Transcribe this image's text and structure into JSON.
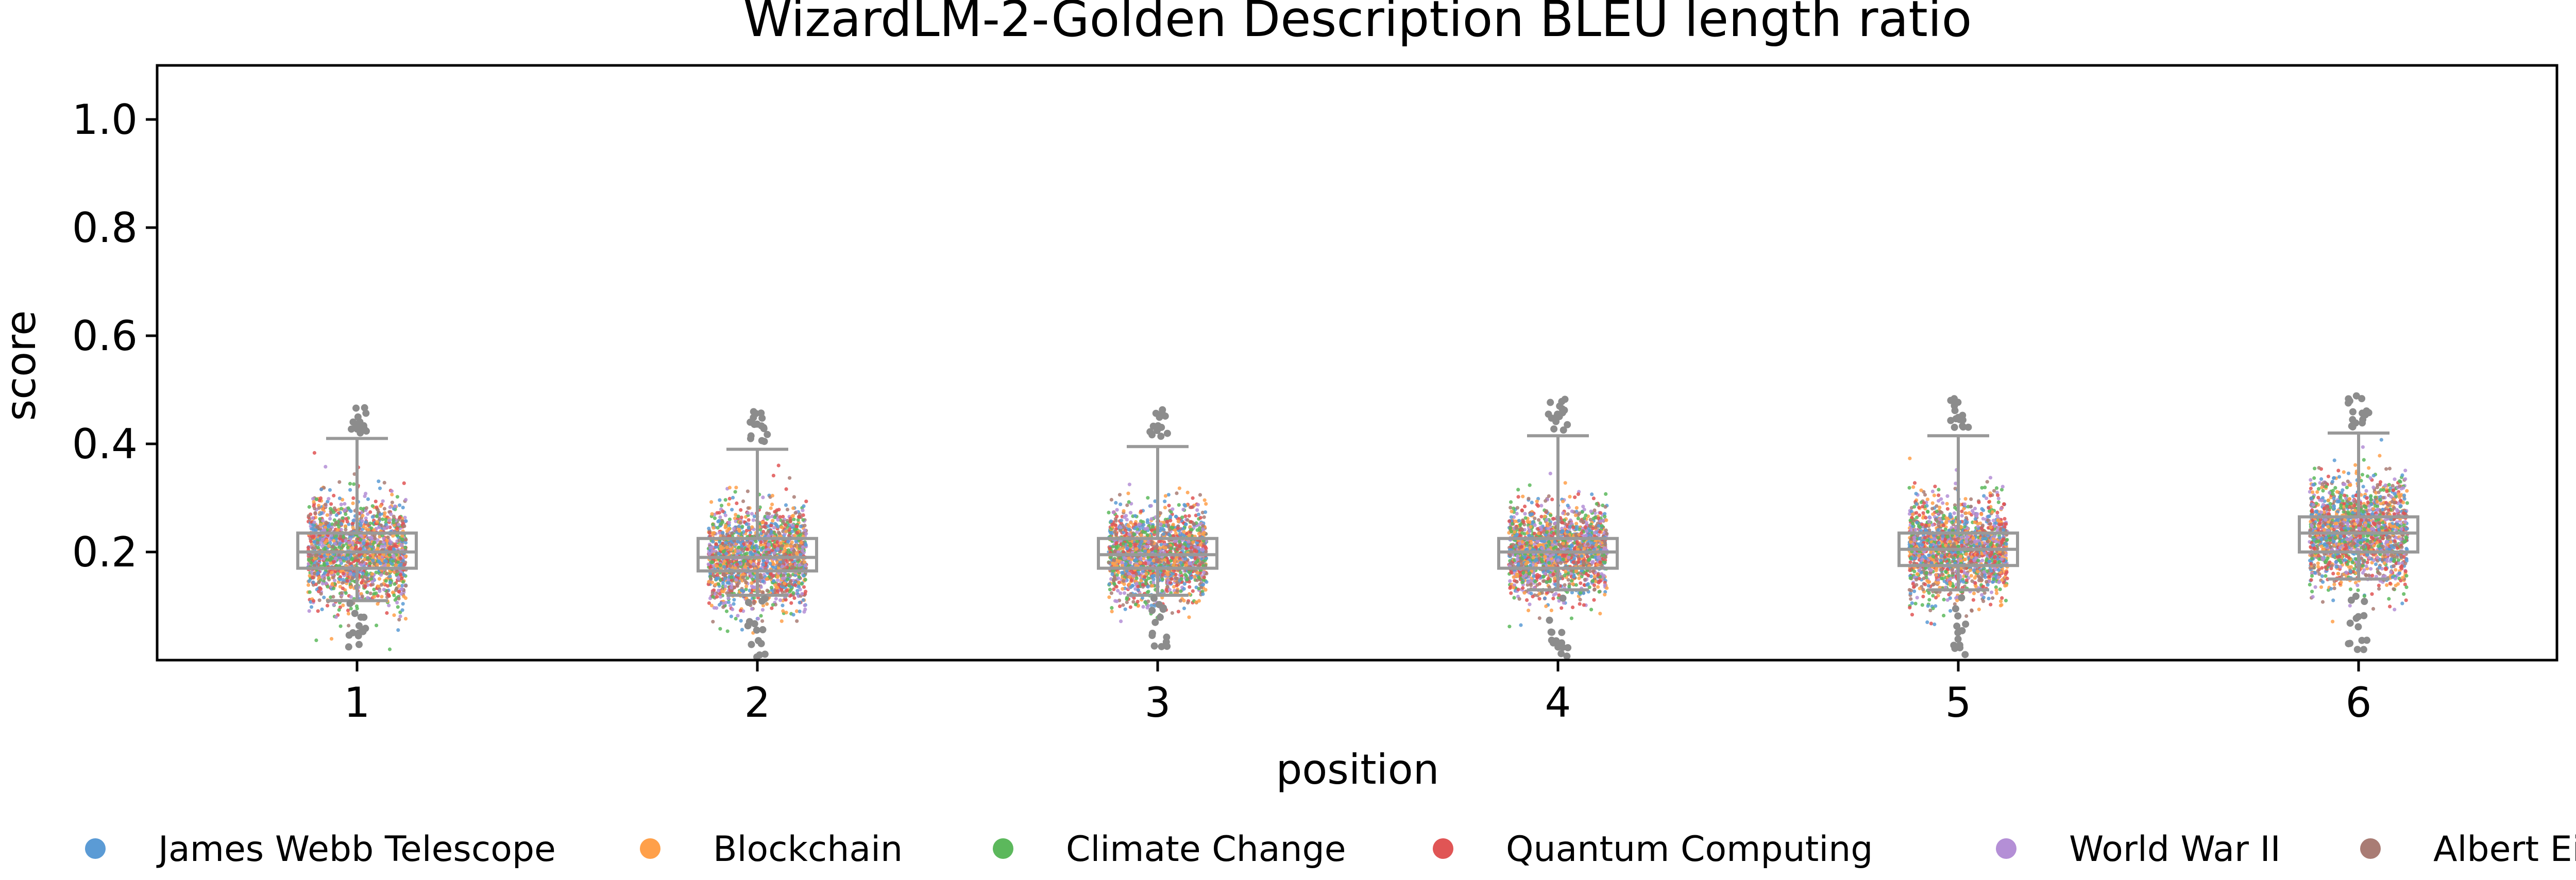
{
  "chart_data": {
    "type": "box",
    "title": "WizardLM-2-Golden Description BLEU length ratio",
    "xlabel": "position",
    "ylabel": "score",
    "categories": [
      "1",
      "2",
      "3",
      "4",
      "5",
      "6"
    ],
    "ylim": [
      0.0,
      1.1
    ],
    "yticks": [
      "0.2",
      "0.4",
      "0.6",
      "0.8",
      "1.0"
    ],
    "grid": false,
    "legend_position": "bottom",
    "boxes": [
      {
        "position": "1",
        "whisker_low": 0.11,
        "q1": 0.17,
        "median": 0.2,
        "q3": 0.235,
        "whisker_high": 0.41
      },
      {
        "position": "2",
        "whisker_low": 0.12,
        "q1": 0.165,
        "median": 0.19,
        "q3": 0.225,
        "whisker_high": 0.39
      },
      {
        "position": "3",
        "whisker_low": 0.12,
        "q1": 0.17,
        "median": 0.195,
        "q3": 0.225,
        "whisker_high": 0.395
      },
      {
        "position": "4",
        "whisker_low": 0.13,
        "q1": 0.17,
        "median": 0.2,
        "q3": 0.225,
        "whisker_high": 0.415
      },
      {
        "position": "5",
        "whisker_low": 0.13,
        "q1": 0.175,
        "median": 0.205,
        "q3": 0.235,
        "whisker_high": 0.415
      },
      {
        "position": "6",
        "whisker_low": 0.15,
        "q1": 0.2,
        "median": 0.235,
        "q3": 0.265,
        "whisker_high": 0.42
      }
    ],
    "series": [
      {
        "name": "James Webb Telescope",
        "color": "#5b9bd5"
      },
      {
        "name": "Blockchain",
        "color": "#ffa04a"
      },
      {
        "name": "Climate Change",
        "color": "#5cb85c"
      },
      {
        "name": "Quantum Computing",
        "color": "#e05555"
      },
      {
        "name": "World War II",
        "color": "#b48fd6"
      },
      {
        "name": "Albert Einstein",
        "color": "#a97c74"
      }
    ],
    "box_color": "#999999",
    "outlier_color": "#8c8c8c"
  }
}
